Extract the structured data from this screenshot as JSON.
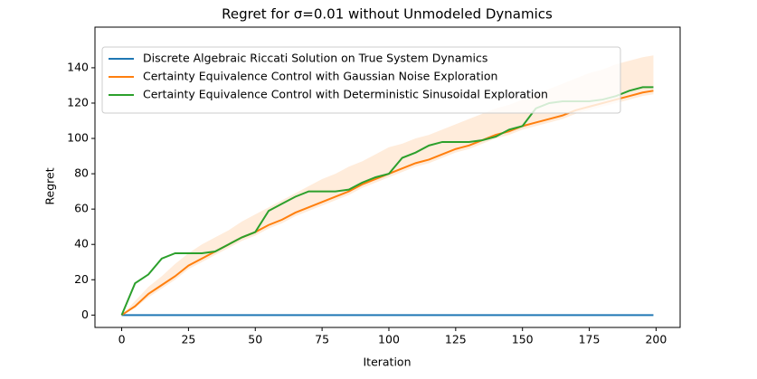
{
  "chart_data": {
    "type": "line",
    "title": "Regret for σ=0.01 without Unmodeled Dynamics",
    "x_label": "Iteration",
    "y_label": "Regret",
    "x": [
      0,
      5,
      10,
      15,
      20,
      25,
      30,
      35,
      40,
      45,
      50,
      55,
      60,
      65,
      70,
      75,
      80,
      85,
      90,
      95,
      100,
      105,
      110,
      115,
      120,
      125,
      130,
      135,
      140,
      145,
      150,
      155,
      160,
      165,
      170,
      175,
      180,
      185,
      190,
      195,
      199
    ],
    "series": [
      {
        "name": "Discrete Algebraic Riccati Solution on True System Dynamics",
        "color": "#1f77b4",
        "values": [
          0,
          0,
          0,
          0,
          0,
          0,
          0,
          0,
          0,
          0,
          0,
          0,
          0,
          0,
          0,
          0,
          0,
          0,
          0,
          0,
          0,
          0,
          0,
          0,
          0,
          0,
          0,
          0,
          0,
          0,
          0,
          0,
          0,
          0,
          0,
          0,
          0,
          0,
          0,
          0,
          0
        ]
      },
      {
        "name": "Certainty Equivalence Control with Gaussian Noise Exploration",
        "color": "#ff7f0e",
        "values": [
          0,
          5,
          12,
          17,
          22,
          28,
          32,
          36,
          40,
          44,
          47,
          51,
          54,
          58,
          61,
          64,
          67,
          70,
          74,
          77,
          80,
          83,
          86,
          88,
          91,
          94,
          96,
          99,
          102,
          104,
          107,
          109,
          111,
          113,
          116,
          118,
          120,
          122,
          124,
          126,
          127
        ],
        "upper": [
          0,
          8,
          16,
          22,
          29,
          35,
          40,
          44,
          48,
          53,
          57,
          61,
          65,
          69,
          73,
          77,
          80,
          84,
          87,
          91,
          95,
          97,
          100,
          102,
          105,
          108,
          111,
          114,
          117,
          119,
          122,
          125,
          128,
          131,
          134,
          137,
          139,
          142,
          144,
          146,
          147
        ],
        "lower": [
          0,
          4,
          10,
          15,
          20,
          26,
          30,
          34,
          38,
          42,
          45,
          49,
          52,
          56,
          59,
          62,
          65,
          68,
          72,
          75,
          78,
          81,
          84,
          86,
          89,
          92,
          94,
          97,
          100,
          102,
          105,
          107,
          109,
          111,
          114,
          116,
          118,
          120,
          122,
          124,
          125
        ]
      },
      {
        "name": "Certainty Equivalence Control with Deterministic Sinusoidal Exploration",
        "color": "#2ca02c",
        "values": [
          0,
          18,
          23,
          32,
          35,
          35,
          35,
          36,
          40,
          44,
          47,
          59,
          63,
          67,
          70,
          70,
          70,
          71,
          75,
          78,
          80,
          89,
          92,
          96,
          98,
          98,
          98,
          99,
          101,
          105,
          107,
          117,
          120,
          121,
          121,
          121,
          122,
          124,
          127,
          129,
          129
        ]
      }
    ],
    "xlim": [
      -10,
      209
    ],
    "ylim": [
      -7,
      163
    ],
    "xticks": [
      0,
      25,
      50,
      75,
      100,
      125,
      150,
      175,
      200
    ],
    "yticks": [
      0,
      20,
      40,
      60,
      80,
      100,
      120,
      140
    ],
    "legend": "upper left"
  }
}
